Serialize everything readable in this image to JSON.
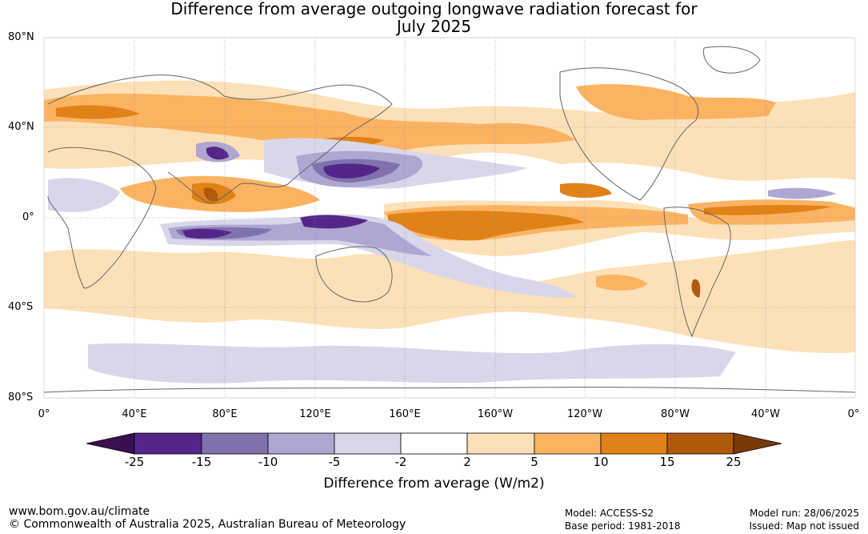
{
  "title": {
    "line1": "Difference from average outgoing longwave radiation forecast for",
    "line2": "July 2025"
  },
  "map": {
    "lat_labels": [
      "80°N",
      "40°N",
      "0°",
      "40°S",
      "80°S"
    ],
    "lon_labels": [
      "0°",
      "40°E",
      "80°E",
      "120°E",
      "160°E",
      "160°W",
      "120°W",
      "80°W",
      "40°W",
      "0°"
    ]
  },
  "legend": {
    "title": "Difference from average (W/m2)",
    "boundaries": [
      "-25",
      "-15",
      "-10",
      "-5",
      "-2",
      "2",
      "5",
      "10",
      "15",
      "25"
    ],
    "colors": [
      "#3b0f4f",
      "#55268a",
      "#8073ad",
      "#ada7d1",
      "#d8d7ea",
      "#ffffff",
      "#fde0b7",
      "#fbb362",
      "#e08217",
      "#b05a0d",
      "#7a3a08"
    ]
  },
  "footer": {
    "website": "www.bom.gov.au/climate",
    "copyright": "© Commonwealth of Australia 2025, Australian Bureau of Meteorology",
    "model": "Model: ACCESS-S2",
    "base_period": "Base period: 1981-2018",
    "model_run": "Model run: 28/06/2025",
    "issued": "Issued: Map not issued"
  }
}
